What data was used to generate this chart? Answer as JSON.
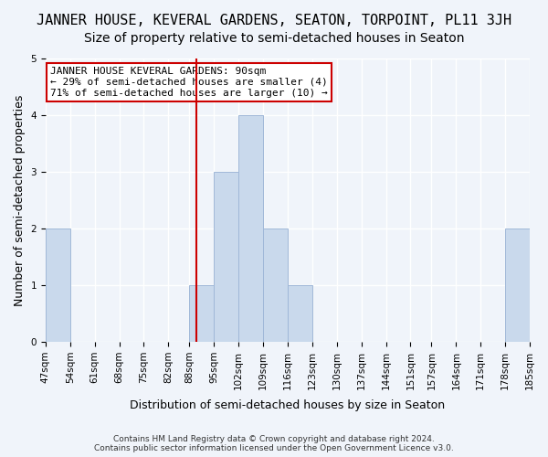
{
  "title": "JANNER HOUSE, KEVERAL GARDENS, SEATON, TORPOINT, PL11 3JH",
  "subtitle": "Size of property relative to semi-detached houses in Seaton",
  "xlabel": "Distribution of semi-detached houses by size in Seaton",
  "ylabel": "Number of semi-detached properties",
  "footnote": "Contains HM Land Registry data © Crown copyright and database right 2024.\nContains public sector information licensed under the Open Government Licence v3.0.",
  "bin_edges": [
    47,
    54,
    61,
    68,
    75,
    82,
    88,
    95,
    102,
    109,
    116,
    123,
    130,
    137,
    144,
    151,
    157,
    164,
    171,
    178,
    185
  ],
  "bin_labels": [
    "47sqm",
    "54sqm",
    "61sqm",
    "68sqm",
    "75sqm",
    "82sqm",
    "88sqm",
    "95sqm",
    "102sqm",
    "109sqm",
    "116sqm",
    "123sqm",
    "130sqm",
    "137sqm",
    "144sqm",
    "151sqm",
    "157sqm",
    "164sqm",
    "171sqm",
    "178sqm",
    "185sqm"
  ],
  "counts": [
    2,
    0,
    0,
    0,
    0,
    0,
    1,
    3,
    4,
    2,
    1,
    0,
    0,
    0,
    0,
    0,
    0,
    0,
    0,
    2
  ],
  "bar_color": "#c9d9ec",
  "bar_edge_color": "#a0b8d8",
  "subject_value": 90,
  "subject_line_color": "#cc0000",
  "annotation_text": "JANNER HOUSE KEVERAL GARDENS: 90sqm\n← 29% of semi-detached houses are smaller (4)\n71% of semi-detached houses are larger (10) →",
  "annotation_box_color": "#ffffff",
  "annotation_box_edge": "#cc0000",
  "ylim": [
    0,
    5
  ],
  "yticks": [
    0,
    1,
    2,
    3,
    4,
    5
  ],
  "background_color": "#f0f4fa",
  "grid_color": "#ffffff",
  "title_fontsize": 11,
  "subtitle_fontsize": 10,
  "ylabel_fontsize": 9,
  "xlabel_fontsize": 9,
  "tick_fontsize": 7.5,
  "annotation_fontsize": 8
}
